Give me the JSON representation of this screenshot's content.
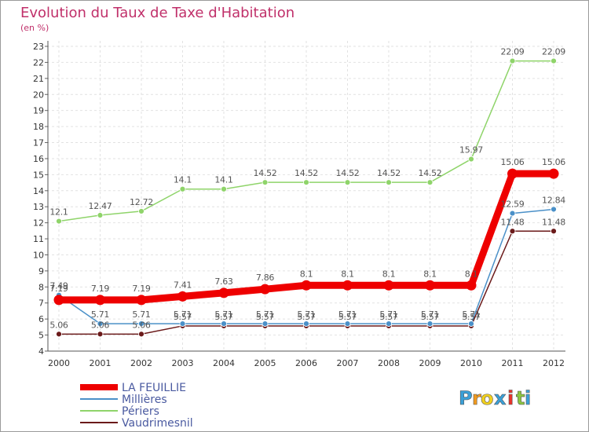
{
  "title": "Evolution du Taux de Taxe d'Habitation",
  "subtitle": "(en %)",
  "logo": {
    "letters": [
      "P",
      "r",
      "o",
      "x",
      "i",
      "t",
      "i"
    ],
    "colors": [
      "#3aa0d8",
      "#f29a1e",
      "#f2d11e",
      "#3aa0d8",
      "#e8332a",
      "#8cc63f",
      "#3aa0d8"
    ]
  },
  "chart_data": {
    "type": "line",
    "x": [
      "2000",
      "2001",
      "2002",
      "2003",
      "2004",
      "2005",
      "2006",
      "2007",
      "2008",
      "2009",
      "2010",
      "2011",
      "2012"
    ],
    "ylim": [
      4,
      23
    ],
    "yticks": [
      "4",
      "5",
      "6",
      "7",
      "8",
      "9",
      "10",
      "11",
      "12",
      "13",
      "14",
      "15",
      "16",
      "17",
      "18",
      "19",
      "20",
      "21",
      "22",
      "23"
    ],
    "grid": true,
    "legend_position": "bottom-left",
    "series": [
      {
        "name": "Vaudrimesnil",
        "color": "#6b1a1a",
        "values": [
          5.06,
          5.06,
          5.06,
          5.57,
          5.57,
          5.57,
          5.57,
          5.57,
          5.57,
          5.57,
          5.57,
          11.48,
          11.48
        ],
        "labels": [
          "5.06",
          "5.06",
          "5.06",
          "5.57",
          "5.57",
          "5.57",
          "5.57",
          "5.57",
          "5.57",
          "5.57",
          "5.57",
          "11.48",
          "11.48"
        ]
      },
      {
        "name": "Millières",
        "color": "#4a90c8",
        "values": [
          7.49,
          5.71,
          5.71,
          5.71,
          5.71,
          5.71,
          5.71,
          5.71,
          5.71,
          5.71,
          5.71,
          12.59,
          12.84
        ],
        "labels": [
          "7.49",
          "5.71",
          "5.71",
          "5.71",
          "5.71",
          "5.71",
          "5.71",
          "5.71",
          "5.71",
          "5.71",
          "5.71",
          "12.59",
          "12.84"
        ]
      },
      {
        "name": "Périers",
        "color": "#8fd46a",
        "values": [
          12.1,
          12.47,
          12.72,
          14.1,
          14.1,
          14.52,
          14.52,
          14.52,
          14.52,
          14.52,
          15.97,
          22.09,
          22.09
        ],
        "labels": [
          "12.1",
          "12.47",
          "12.72",
          "14.1",
          "14.1",
          "14.52",
          "14.52",
          "14.52",
          "14.52",
          "14.52",
          "15.97",
          "22.09",
          "22.09"
        ]
      },
      {
        "name": "LA FEUILLIE",
        "color": "#ee0000",
        "values": [
          7.19,
          7.19,
          7.19,
          7.41,
          7.63,
          7.86,
          8.1,
          8.1,
          8.1,
          8.1,
          8.1,
          15.06,
          15.06
        ],
        "labels": [
          "7.19",
          "7.19",
          "7.19",
          "7.41",
          "7.63",
          "7.86",
          "8.1",
          "8.1",
          "8.1",
          "8.1",
          "8.1",
          "15.06",
          "15.06"
        ]
      }
    ],
    "legend_order": [
      "LA FEUILLIE",
      "Millières",
      "Périers",
      "Vaudrimesnil"
    ]
  }
}
